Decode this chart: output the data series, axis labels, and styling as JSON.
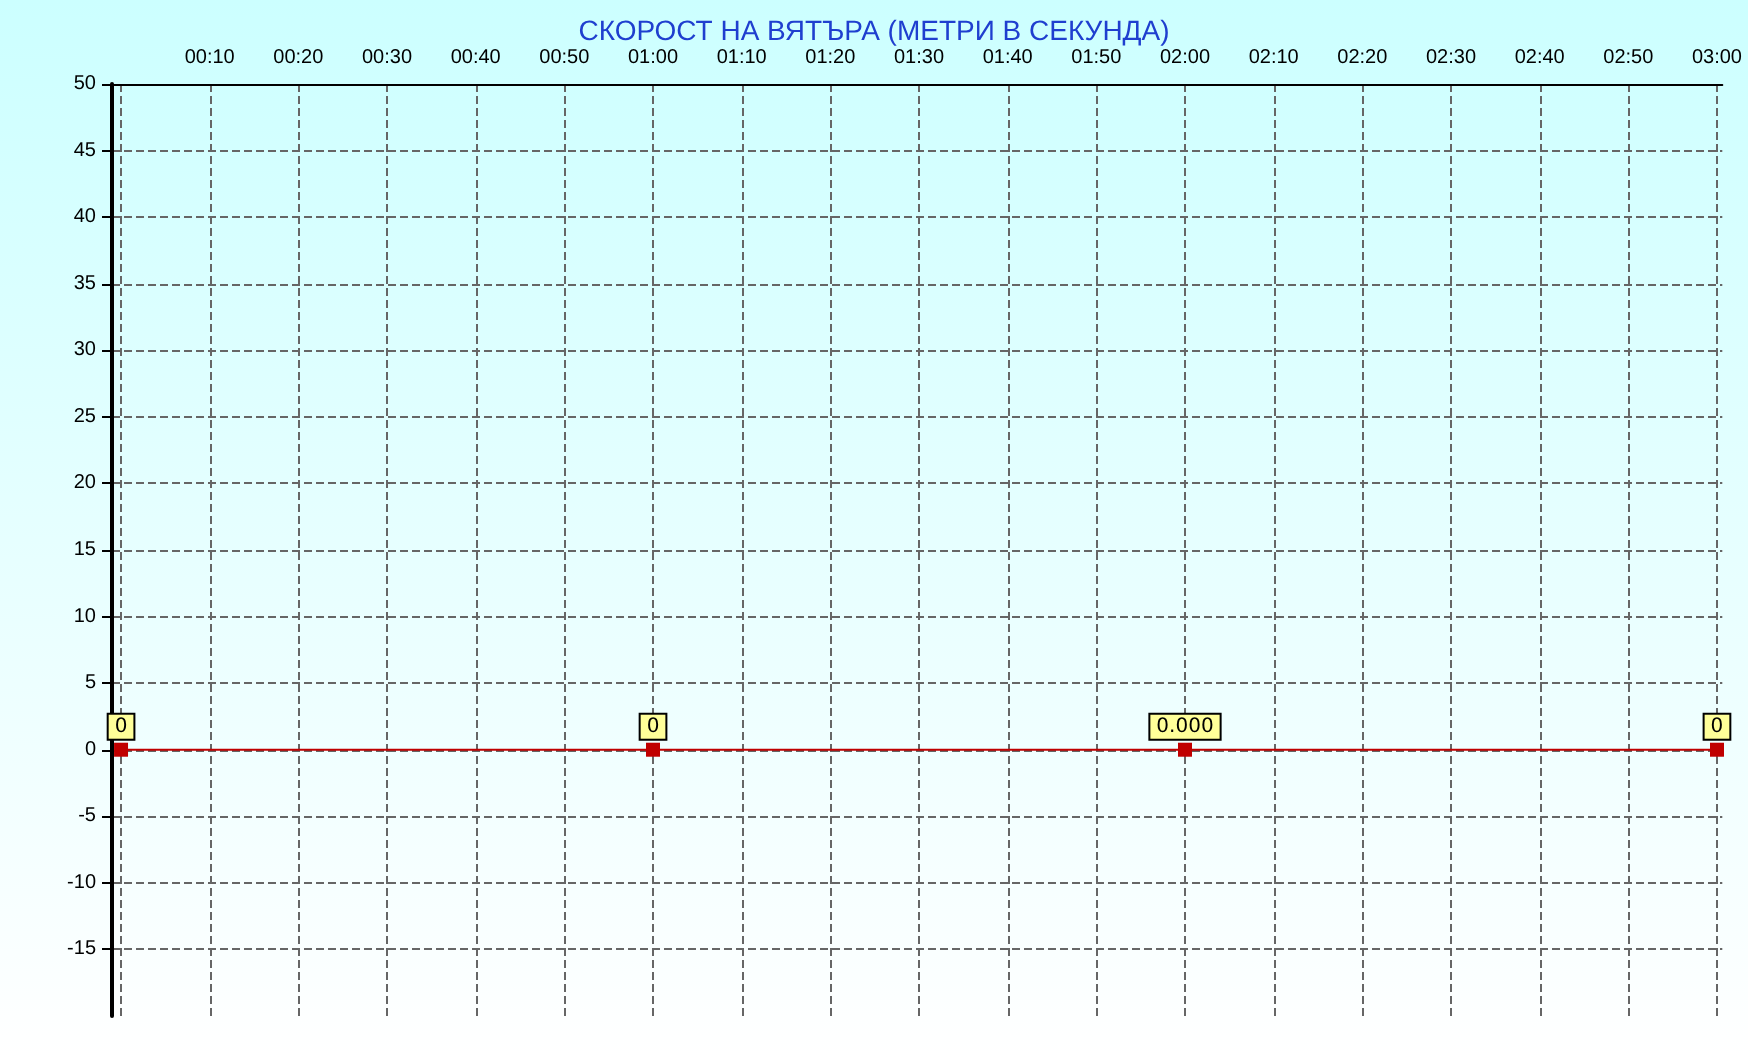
{
  "chart_data": {
    "type": "line",
    "title": "СКОРОСТ НА ВЯТЪРА (МЕТРИ В СЕКУНДА)",
    "x": [
      0,
      1,
      2,
      3
    ],
    "series": [
      {
        "color": "#c00000",
        "values": [
          0,
          0,
          0,
          0
        ],
        "value_labels": [
          "0",
          "0",
          "0.000",
          "0"
        ]
      }
    ],
    "xlim": [
      -0.017,
      3.01
    ],
    "xticks": [
      {
        "value": 0,
        "label": null
      },
      {
        "value": 0.1667,
        "label": "00:10"
      },
      {
        "value": 0.3333,
        "label": "00:20"
      },
      {
        "value": 0.5,
        "label": "00:30"
      },
      {
        "value": 0.6667,
        "label": "00:40"
      },
      {
        "value": 0.8333,
        "label": "00:50"
      },
      {
        "value": 1,
        "label": "01:00"
      },
      {
        "value": 1.1667,
        "label": "01:10"
      },
      {
        "value": 1.3333,
        "label": "01:20"
      },
      {
        "value": 1.5,
        "label": "01:30"
      },
      {
        "value": 1.6667,
        "label": "01:40"
      },
      {
        "value": 1.8333,
        "label": "01:50"
      },
      {
        "value": 2,
        "label": "02:00"
      },
      {
        "value": 2.1667,
        "label": "02:10"
      },
      {
        "value": 2.3333,
        "label": "02:20"
      },
      {
        "value": 2.5,
        "label": "02:30"
      },
      {
        "value": 2.6667,
        "label": "02:40"
      },
      {
        "value": 2.8333,
        "label": "02:50"
      },
      {
        "value": 3,
        "label": "03:00"
      }
    ],
    "ylim": [
      -20,
      50
    ],
    "yticks": [
      -15,
      -10,
      -5,
      0,
      5,
      10,
      15,
      20,
      25,
      30,
      35,
      40,
      45,
      50
    ],
    "grid": true,
    "marker": "square",
    "line_style": "solid"
  }
}
